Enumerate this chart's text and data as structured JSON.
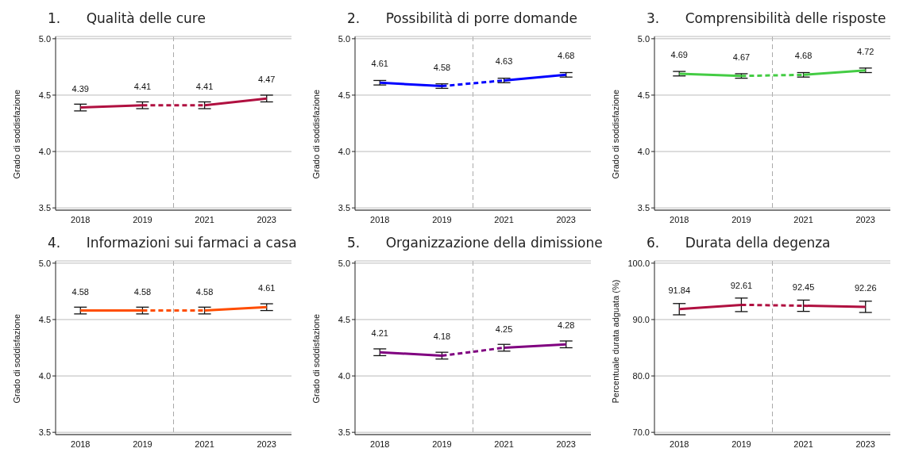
{
  "chart_data": [
    {
      "type": "line",
      "title": "1.      Qualità delle cure",
      "ylabel": "Grado di soddisfazione",
      "categories": [
        "2018",
        "2019",
        "2021",
        "2023"
      ],
      "ylim": [
        3.48,
        5.02
      ],
      "yticks": [
        {
          "value": 3.5,
          "label": "3.5"
        },
        {
          "value": 4,
          "label": "4.0"
        },
        {
          "value": 4.5,
          "label": "4.5"
        },
        {
          "value": 5,
          "label": "5.0"
        }
      ],
      "grid": "y",
      "marker": "none",
      "series": [
        {
          "color": "#b01040",
          "line_style": "solid",
          "values": [
            4.39,
            4.41,
            null,
            null
          ],
          "errors": [
            0.03,
            0.03,
            null,
            null
          ],
          "value_labels": [
            "4.39",
            "4.41",
            null,
            null
          ]
        },
        {
          "color": "#b01040",
          "line_style": "dashed",
          "values": [
            null,
            4.41,
            4.41,
            null
          ]
        },
        {
          "color": "#b01040",
          "line_style": "solid",
          "values": [
            null,
            null,
            4.41,
            4.47
          ],
          "errors": [
            null,
            null,
            0.03,
            0.03
          ],
          "value_labels": [
            null,
            null,
            "4.41",
            "4.47"
          ]
        }
      ]
    },
    {
      "type": "line",
      "title": "2.      Possibilità di porre domande",
      "ylabel": "Grado di soddisfazione",
      "categories": [
        "2018",
        "2019",
        "2021",
        "2023"
      ],
      "ylim": [
        3.48,
        5.02
      ],
      "yticks": [
        {
          "value": 3.5,
          "label": "3.5"
        },
        {
          "value": 4,
          "label": "4.0"
        },
        {
          "value": 4.5,
          "label": "4.5"
        },
        {
          "value": 5,
          "label": "5.0"
        }
      ],
      "grid": "y",
      "marker": "none",
      "series": [
        {
          "color": "#0000ff",
          "line_style": "solid",
          "values": [
            4.61,
            4.58,
            null,
            null
          ],
          "errors": [
            0.02,
            0.02,
            null,
            null
          ],
          "value_labels": [
            "4.61",
            "4.58",
            null,
            null
          ]
        },
        {
          "color": "#0000ff",
          "line_style": "dashed",
          "values": [
            null,
            4.58,
            4.63,
            null
          ]
        },
        {
          "color": "#0000ff",
          "line_style": "solid",
          "values": [
            null,
            null,
            4.63,
            4.68
          ],
          "errors": [
            null,
            null,
            0.02,
            0.02
          ],
          "value_labels": [
            null,
            null,
            "4.63",
            "4.68"
          ]
        }
      ]
    },
    {
      "type": "line",
      "title": "3.      Comprensibilità delle risposte",
      "ylabel": "Grado di soddisfazione",
      "categories": [
        "2018",
        "2019",
        "2021",
        "2023"
      ],
      "ylim": [
        3.48,
        5.02
      ],
      "yticks": [
        {
          "value": 3.5,
          "label": "3.5"
        },
        {
          "value": 4,
          "label": "4.0"
        },
        {
          "value": 4.5,
          "label": "4.5"
        },
        {
          "value": 5,
          "label": "5.0"
        }
      ],
      "grid": "y",
      "marker": "none",
      "series": [
        {
          "color": "#44cc44",
          "line_style": "solid",
          "values": [
            4.69,
            4.67,
            null,
            null
          ],
          "errors": [
            0.02,
            0.02,
            null,
            null
          ],
          "value_labels": [
            "4.69",
            "4.67",
            null,
            null
          ]
        },
        {
          "color": "#44cc44",
          "line_style": "dashed",
          "values": [
            null,
            4.67,
            4.68,
            null
          ]
        },
        {
          "color": "#44cc44",
          "line_style": "solid",
          "values": [
            null,
            null,
            4.68,
            4.72
          ],
          "errors": [
            null,
            null,
            0.02,
            0.02
          ],
          "value_labels": [
            null,
            null,
            "4.68",
            "4.72"
          ]
        }
      ]
    },
    {
      "type": "line",
      "title": "4.      Informazioni sui farmaci a casa",
      "ylabel": "Grado di soddisfazione",
      "categories": [
        "2018",
        "2019",
        "2021",
        "2023"
      ],
      "ylim": [
        3.48,
        5.02
      ],
      "yticks": [
        {
          "value": 3.5,
          "label": "3.5"
        },
        {
          "value": 4,
          "label": "4.0"
        },
        {
          "value": 4.5,
          "label": "4.5"
        },
        {
          "value": 5,
          "label": "5.0"
        }
      ],
      "grid": "y",
      "marker": "none",
      "series": [
        {
          "color": "#ff4d00",
          "line_style": "solid",
          "values": [
            4.58,
            4.58,
            null,
            null
          ],
          "errors": [
            0.03,
            0.03,
            null,
            null
          ],
          "value_labels": [
            "4.58",
            "4.58",
            null,
            null
          ]
        },
        {
          "color": "#ff4d00",
          "line_style": "dashed",
          "values": [
            null,
            4.58,
            4.58,
            null
          ]
        },
        {
          "color": "#ff4d00",
          "line_style": "solid",
          "values": [
            null,
            null,
            4.58,
            4.61
          ],
          "errors": [
            null,
            null,
            0.03,
            0.03
          ],
          "value_labels": [
            null,
            null,
            "4.58",
            "4.61"
          ]
        }
      ]
    },
    {
      "type": "line",
      "title": "5.      Organizzazione della dimissione",
      "ylabel": "Grado di soddisfazione",
      "categories": [
        "2018",
        "2019",
        "2021",
        "2023"
      ],
      "ylim": [
        3.48,
        5.02
      ],
      "yticks": [
        {
          "value": 3.5,
          "label": "3.5"
        },
        {
          "value": 4,
          "label": "4.0"
        },
        {
          "value": 4.5,
          "label": "4.5"
        },
        {
          "value": 5,
          "label": "5.0"
        }
      ],
      "grid": "y",
      "marker": "none",
      "series": [
        {
          "color": "#800080",
          "line_style": "solid",
          "values": [
            4.21,
            4.18,
            null,
            null
          ],
          "errors": [
            0.03,
            0.03,
            null,
            null
          ],
          "value_labels": [
            "4.21",
            "4.18",
            null,
            null
          ]
        },
        {
          "color": "#800080",
          "line_style": "dashed",
          "values": [
            null,
            4.18,
            4.25,
            null
          ]
        },
        {
          "color": "#800080",
          "line_style": "solid",
          "values": [
            null,
            null,
            4.25,
            4.28
          ],
          "errors": [
            null,
            null,
            0.03,
            0.03
          ],
          "value_labels": [
            null,
            null,
            "4.25",
            "4.28"
          ]
        }
      ]
    },
    {
      "type": "line",
      "title": "6.      Durata della degenza",
      "ylabel": "Percentuale durata adguata (%)",
      "categories": [
        "2018",
        "2019",
        "2021",
        "2023"
      ],
      "ylim": [
        69.6,
        100.4
      ],
      "yticks": [
        {
          "value": 70,
          "label": "70.0"
        },
        {
          "value": 80,
          "label": "80.0"
        },
        {
          "value": 90,
          "label": "90.0"
        },
        {
          "value": 100,
          "label": "100.0"
        }
      ],
      "grid": "y",
      "marker": "none",
      "series": [
        {
          "color": "#b01040",
          "line_style": "solid",
          "values": [
            91.84,
            92.61,
            null,
            null
          ],
          "errors": [
            1.0,
            1.2,
            null,
            null
          ],
          "value_labels": [
            "91.84",
            "92.61",
            null,
            null
          ]
        },
        {
          "color": "#b01040",
          "line_style": "dashed",
          "values": [
            null,
            92.61,
            92.45,
            null
          ]
        },
        {
          "color": "#b01040",
          "line_style": "solid",
          "values": [
            null,
            null,
            92.45,
            92.26
          ],
          "errors": [
            null,
            null,
            1.0,
            1.0
          ],
          "value_labels": [
            null,
            null,
            "92.45",
            "92.26"
          ]
        }
      ]
    }
  ]
}
